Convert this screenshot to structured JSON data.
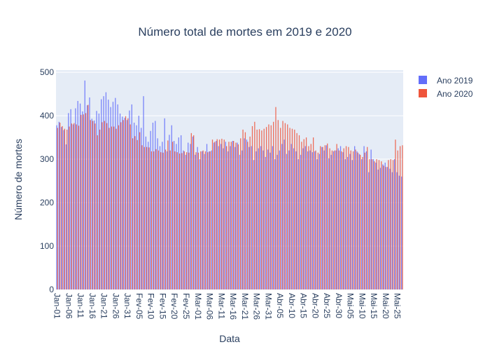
{
  "chart_data": {
    "type": "bar",
    "title": "Número total de mortes em 2019 e 2020",
    "xlabel": "Data",
    "ylabel": "Número de mortes",
    "ylim": [
      0,
      505
    ],
    "yticks": [
      0,
      100,
      200,
      300,
      400,
      500
    ],
    "grid": true,
    "legend_position": "top-right",
    "x_categories": [
      "Jan-01",
      "Jan-02",
      "Jan-03",
      "Jan-04",
      "Jan-05",
      "Jan-06",
      "Jan-07",
      "Jan-08",
      "Jan-09",
      "Jan-10",
      "Jan-11",
      "Jan-12",
      "Jan-13",
      "Jan-14",
      "Jan-15",
      "Jan-16",
      "Jan-17",
      "Jan-18",
      "Jan-19",
      "Jan-20",
      "Jan-21",
      "Jan-22",
      "Jan-23",
      "Jan-24",
      "Jan-25",
      "Jan-26",
      "Jan-27",
      "Jan-28",
      "Jan-29",
      "Jan-30",
      "Jan-31",
      "Fev-01",
      "Fev-02",
      "Fev-03",
      "Fev-04",
      "Fev-05",
      "Fev-06",
      "Fev-07",
      "Fev-08",
      "Fev-09",
      "Fev-10",
      "Fev-11",
      "Fev-12",
      "Fev-13",
      "Fev-14",
      "Fev-15",
      "Fev-16",
      "Fev-17",
      "Fev-18",
      "Fev-19",
      "Fev-20",
      "Fev-21",
      "Fev-22",
      "Fev-23",
      "Fev-24",
      "Fev-25",
      "Fev-26",
      "Fev-27",
      "Fev-28",
      "Fev-29",
      "Mar-01",
      "Mar-02",
      "Mar-03",
      "Mar-04",
      "Mar-05",
      "Mar-06",
      "Mar-07",
      "Mar-08",
      "Mar-09",
      "Mar-10",
      "Mar-11",
      "Mar-12",
      "Mar-13",
      "Mar-14",
      "Mar-15",
      "Mar-16",
      "Mar-17",
      "Mar-18",
      "Mar-19",
      "Mar-20",
      "Mar-21",
      "Mar-22",
      "Mar-23",
      "Mar-24",
      "Mar-25",
      "Mar-26",
      "Mar-27",
      "Mar-28",
      "Mar-29",
      "Mar-30",
      "Mar-31",
      "Abr-01",
      "Abr-02",
      "Abr-03",
      "Abr-04",
      "Abr-05",
      "Abr-06",
      "Abr-07",
      "Abr-08",
      "Abr-09",
      "Abr-10",
      "Abr-11",
      "Abr-12",
      "Abr-13",
      "Abr-14",
      "Abr-15",
      "Abr-16",
      "Abr-17",
      "Abr-18",
      "Abr-19",
      "Abr-20",
      "Abr-21",
      "Abr-22",
      "Abr-23",
      "Abr-24",
      "Abr-25",
      "Abr-26",
      "Abr-27",
      "Abr-28",
      "Abr-29",
      "Abr-30",
      "Mai-01",
      "Mai-02",
      "Mai-03",
      "Mai-04",
      "Mai-05",
      "Mai-06",
      "Mai-07",
      "Mai-08",
      "Mai-09",
      "Mai-10",
      "Mai-11",
      "Mai-12",
      "Mai-13",
      "Mai-14",
      "Mai-15",
      "Mai-16",
      "Mai-17",
      "Mai-18",
      "Mai-19",
      "Mai-20",
      "Mai-21",
      "Mai-22",
      "Mai-23",
      "Mai-24",
      "Mai-25",
      "Mai-26",
      "Mai-27"
    ],
    "x_tick_labels": [
      "Jan-01",
      "Jan-06",
      "Jan-11",
      "Jan-16",
      "Jan-21",
      "Jan-26",
      "Jan-31",
      "Fev-05",
      "Fev-10",
      "Fev-15",
      "Fev-20",
      "Fev-25",
      "Mar-01",
      "Mar-06",
      "Mar-11",
      "Mar-16",
      "Mar-21",
      "Mar-26",
      "Mar-31",
      "Abr-05",
      "Abr-10",
      "Abr-15",
      "Abr-20",
      "Abr-25",
      "Abr-30",
      "Mai-05",
      "Mai-10",
      "Mai-15",
      "Mai-20",
      "Mai-25"
    ],
    "series": [
      {
        "name": "Ano 2019",
        "color": "#636efa",
        "values": [
          378,
          386,
          374,
          367,
          334,
          406,
          415,
          380,
          417,
          434,
          428,
          410,
          481,
          424,
          442,
          393,
          389,
          411,
          405,
          438,
          445,
          454,
          437,
          420,
          432,
          441,
          426,
          405,
          398,
          395,
          390,
          412,
          426,
          384,
          378,
          400,
          372,
          445,
          352,
          340,
          365,
          384,
          388,
          348,
          330,
          340,
          394,
          318,
          356,
          378,
          342,
          335,
          350,
          355,
          320,
          310,
          338,
          335,
          352,
          310,
          328,
          300,
          318,
          312,
          335,
          318,
          320,
          338,
          342,
          330,
          335,
          325,
          340,
          318,
          330,
          342,
          328,
          338,
          310,
          320,
          348,
          345,
          328,
          330,
          298,
          318,
          325,
          330,
          320,
          305,
          322,
          315,
          330,
          300,
          310,
          320,
          335,
          345,
          312,
          320,
          335,
          325,
          318,
          300,
          310,
          325,
          330,
          318,
          320,
          316,
          318,
          300,
          312,
          328,
          320,
          332,
          302,
          310,
          318,
          320,
          325,
          330,
          316,
          300,
          305,
          312,
          298,
          330,
          318,
          312,
          300,
          330,
          318,
          270,
          322,
          300,
          292,
          276,
          280,
          288,
          292,
          282,
          278,
          270,
          300,
          270,
          262,
          260
        ]
      },
      {
        "name": "Ano 2020",
        "color": "#ef553b",
        "values": [
          372,
          384,
          376,
          370,
          368,
          375,
          382,
          383,
          380,
          377,
          402,
          403,
          406,
          425,
          390,
          388,
          382,
          355,
          368,
          385,
          388,
          383,
          372,
          375,
          375,
          370,
          378,
          385,
          390,
          399,
          394,
          380,
          348,
          353,
          344,
          362,
          332,
          328,
          328,
          327,
          318,
          318,
          323,
          320,
          316,
          315,
          322,
          343,
          320,
          340,
          318,
          316,
          313,
          314,
          318,
          316,
          315,
          360,
          355,
          316,
          315,
          318,
          320,
          318,
          316,
          318,
          345,
          340,
          346,
          345,
          347,
          345,
          330,
          340,
          340,
          342,
          338,
          334,
          348,
          368,
          362,
          340,
          352,
          376,
          386,
          368,
          369,
          366,
          370,
          374,
          380,
          378,
          386,
          420,
          390,
          372,
          388,
          383,
          380,
          372,
          370,
          368,
          360,
          355,
          340,
          346,
          350,
          330,
          335,
          350,
          320,
          315,
          330,
          328,
          332,
          336,
          325,
          320,
          320,
          335,
          320,
          318,
          325,
          330,
          328,
          320,
          318,
          322,
          315,
          310,
          305,
          315,
          328,
          300,
          300,
          295,
          300,
          298,
          295,
          285,
          282,
          298,
          300,
          298,
          345,
          320,
          330,
          332
        ]
      }
    ]
  }
}
